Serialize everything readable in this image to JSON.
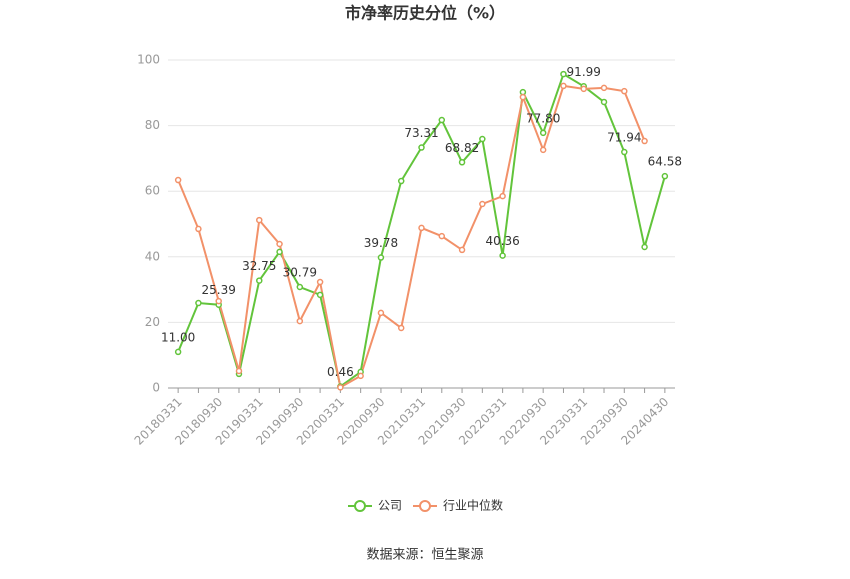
{
  "chart_data": {
    "type": "line",
    "title": "市净率历史分位（%）",
    "source": "数据来源：恒生聚源",
    "categories": [
      "20180331",
      null,
      "20180930",
      null,
      "20190331",
      null,
      "20190930",
      null,
      "20200331",
      null,
      "20200930",
      null,
      "20210331",
      null,
      "20210930",
      null,
      "20220331",
      null,
      "20220930",
      null,
      "20230331",
      null,
      "20230930",
      null,
      "20240430"
    ],
    "ylim": [
      0,
      100
    ],
    "yticks": [
      0,
      20,
      40,
      60,
      80,
      100
    ],
    "grid": true,
    "legend": "bottom",
    "series": [
      {
        "name": "公司",
        "color": "#62c43b",
        "values": [
          11.0,
          25.9,
          25.39,
          4.3,
          32.75,
          41.5,
          30.79,
          28.4,
          0.46,
          4.9,
          39.78,
          63.1,
          73.31,
          81.7,
          68.82,
          75.9,
          40.36,
          90.2,
          77.8,
          95.7,
          91.99,
          87.2,
          71.94,
          43.0,
          64.58
        ],
        "value_labels": [
          "11.00",
          null,
          "25.39",
          null,
          "32.75",
          null,
          "30.79",
          null,
          "0.46",
          null,
          "39.78",
          null,
          "73.31",
          null,
          "68.82",
          null,
          "40.36",
          null,
          "77.80",
          null,
          "91.99",
          null,
          "71.94",
          null,
          "64.58"
        ]
      },
      {
        "name": "行业中位数",
        "color": "#f29169",
        "values": [
          63.4,
          48.5,
          26.5,
          5.2,
          51.2,
          43.9,
          20.4,
          32.3,
          0.2,
          3.7,
          22.9,
          18.3,
          48.8,
          46.3,
          42.1,
          56.1,
          58.5,
          88.7,
          72.6,
          92.1,
          91.2,
          91.5,
          90.5,
          75.3,
          null
        ]
      }
    ]
  }
}
